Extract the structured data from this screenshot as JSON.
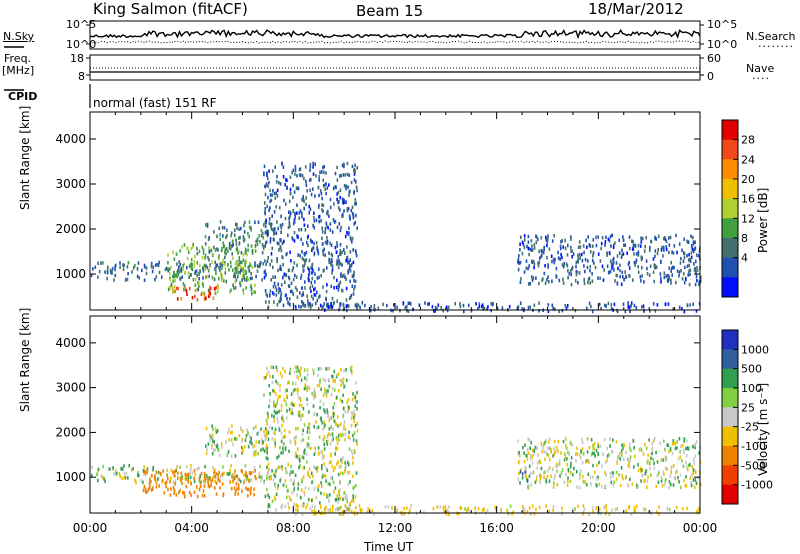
{
  "header": {
    "station": "King Salmon (fitACF)",
    "beam": "Beam 15",
    "date": "18/Mar/2012"
  },
  "top_panels": {
    "nsky_label": "N.Sky",
    "nsearch_label": "N.Search",
    "ticks_left_upper": [
      "10^5",
      "10^0"
    ],
    "ticks_right_upper": [
      "10^5",
      "10^0"
    ],
    "freq_label_1": "Freq.",
    "freq_label_2": "[MHz]",
    "freq_ticks": [
      "18",
      "8"
    ],
    "nave_ticks": [
      "60",
      "0"
    ],
    "nave_label": "Nave",
    "cpid_label": "CPID",
    "cpid_value": "normal (fast) 151 RF"
  },
  "x_axis": {
    "title": "Time UT",
    "ticks": [
      "00:00",
      "04:00",
      "08:00",
      "12:00",
      "16:00",
      "20:00",
      "00:00"
    ]
  },
  "power_colorbar": {
    "title": "Power [dB]",
    "ticks": [
      "28",
      "24",
      "20",
      "16",
      "12",
      "8",
      "4"
    ],
    "colors": [
      "#e00000",
      "#f04a1a",
      "#ff8c00",
      "#f0c000",
      "#b0d030",
      "#40a040",
      "#407070",
      "#2050b0",
      "#0010ff"
    ]
  },
  "velocity_colorbar": {
    "title": "Velocity [m s⁻¹]",
    "ticks": [
      "1000",
      "500",
      "100",
      "25",
      "-25",
      "-100",
      "-500",
      "-1000"
    ],
    "colors": [
      "#2030c0",
      "#3060a0",
      "#30a050",
      "#80d040",
      "#c8c8c8",
      "#f0c000",
      "#f08000",
      "#f04000",
      "#e00000"
    ]
  },
  "chart_data": [
    {
      "type": "heatmap",
      "name": "Power",
      "ylabel": "Slant Range [km]",
      "xlabel": "",
      "yticks": [
        "1000",
        "2000",
        "3000",
        "4000"
      ],
      "ylim": [
        200,
        4600
      ],
      "xlim": [
        0,
        24
      ],
      "value_range": [
        0,
        30
      ],
      "scatter_regions": [
        {
          "t": [
            0.0,
            7.0
          ],
          "r": [
            900,
            1300
          ],
          "level": 6
        },
        {
          "t": [
            3.0,
            6.5
          ],
          "r": [
            600,
            1700
          ],
          "level": 12
        },
        {
          "t": [
            3.2,
            5.0
          ],
          "r": [
            450,
            750
          ],
          "level": 26
        },
        {
          "t": [
            4.5,
            7.0
          ],
          "r": [
            1500,
            2200
          ],
          "level": 8
        },
        {
          "t": [
            6.8,
            10.5
          ],
          "r": [
            300,
            3500
          ],
          "level": 5
        },
        {
          "t": [
            8.0,
            24.0
          ],
          "r": [
            200,
            400
          ],
          "level": 4
        },
        {
          "t": [
            16.8,
            24.0
          ],
          "r": [
            800,
            1900
          ],
          "level": 5
        }
      ]
    },
    {
      "type": "heatmap",
      "name": "Velocity",
      "ylabel": "Slant Range [km]",
      "xlabel": "Time UT",
      "yticks": [
        "1000",
        "2000",
        "3000",
        "4000"
      ],
      "ylim": [
        200,
        4600
      ],
      "xlim": [
        0,
        24
      ],
      "value_range": [
        -1000,
        1000
      ],
      "scatter_regions": [
        {
          "t": [
            0.0,
            7.0
          ],
          "r": [
            900,
            1300
          ],
          "level": 0
        },
        {
          "t": [
            2.0,
            6.5
          ],
          "r": [
            600,
            1200
          ],
          "level": -300
        },
        {
          "t": [
            4.5,
            7.0
          ],
          "r": [
            1500,
            2200
          ],
          "level": 0
        },
        {
          "t": [
            6.8,
            10.5
          ],
          "r": [
            300,
            3500
          ],
          "level": 0
        },
        {
          "t": [
            8.0,
            24.0
          ],
          "r": [
            200,
            400
          ],
          "level": -40
        },
        {
          "t": [
            16.8,
            24.0
          ],
          "r": [
            800,
            1900
          ],
          "level": 0
        },
        {
          "t": [
            16.8,
            17.2
          ],
          "r": [
            900,
            1200
          ],
          "level": 120
        }
      ]
    }
  ]
}
